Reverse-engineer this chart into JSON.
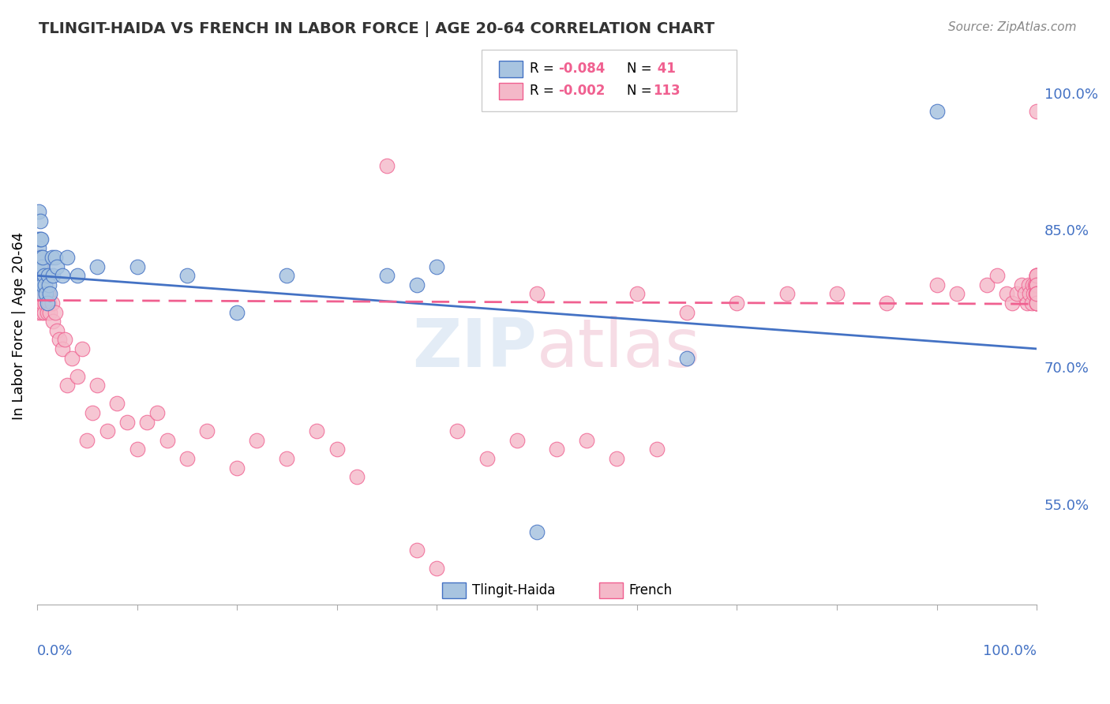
{
  "title": "TLINGIT-HAIDA VS FRENCH IN LABOR FORCE | AGE 20-64 CORRELATION CHART",
  "source": "Source: ZipAtlas.com",
  "ylabel": "In Labor Force | Age 20-64",
  "legend_r1": "R = -0.084",
  "legend_n1": "N =  41",
  "legend_r2": "R = -0.002",
  "legend_n2": "N = 113",
  "color_blue": "#a8c4e0",
  "color_pink": "#f4b8c8",
  "line_blue": "#4472c4",
  "line_pink": "#f06090",
  "blue_x": [
    0.001,
    0.001,
    0.002,
    0.002,
    0.002,
    0.003,
    0.003,
    0.003,
    0.003,
    0.004,
    0.004,
    0.004,
    0.005,
    0.005,
    0.006,
    0.006,
    0.007,
    0.008,
    0.009,
    0.01,
    0.011,
    0.012,
    0.013,
    0.015,
    0.016,
    0.018,
    0.02,
    0.025,
    0.03,
    0.04,
    0.06,
    0.1,
    0.15,
    0.2,
    0.25,
    0.35,
    0.38,
    0.4,
    0.5,
    0.65,
    0.9
  ],
  "blue_y": [
    0.82,
    0.84,
    0.8,
    0.83,
    0.87,
    0.79,
    0.81,
    0.84,
    0.86,
    0.79,
    0.82,
    0.84,
    0.78,
    0.81,
    0.79,
    0.82,
    0.8,
    0.79,
    0.78,
    0.77,
    0.8,
    0.79,
    0.78,
    0.82,
    0.8,
    0.82,
    0.81,
    0.8,
    0.82,
    0.8,
    0.81,
    0.81,
    0.8,
    0.76,
    0.8,
    0.8,
    0.79,
    0.81,
    0.52,
    0.71,
    0.98
  ],
  "pink_x": [
    0.001,
    0.001,
    0.001,
    0.002,
    0.002,
    0.002,
    0.002,
    0.003,
    0.003,
    0.003,
    0.003,
    0.004,
    0.004,
    0.004,
    0.005,
    0.005,
    0.005,
    0.006,
    0.006,
    0.007,
    0.007,
    0.008,
    0.008,
    0.009,
    0.01,
    0.011,
    0.012,
    0.013,
    0.015,
    0.016,
    0.018,
    0.02,
    0.022,
    0.025,
    0.028,
    0.03,
    0.035,
    0.04,
    0.045,
    0.05,
    0.055,
    0.06,
    0.07,
    0.08,
    0.09,
    0.1,
    0.11,
    0.12,
    0.13,
    0.15,
    0.17,
    0.2,
    0.22,
    0.25,
    0.28,
    0.3,
    0.32,
    0.35,
    0.38,
    0.4,
    0.42,
    0.45,
    0.48,
    0.5,
    0.52,
    0.55,
    0.58,
    0.6,
    0.62,
    0.65,
    0.7,
    0.75,
    0.8,
    0.85,
    0.9,
    0.92,
    0.95,
    0.96,
    0.97,
    0.975,
    0.98,
    0.985,
    0.988,
    0.99,
    0.992,
    0.993,
    0.995,
    0.996,
    0.997,
    0.998,
    0.999,
    1.0,
    1.0,
    1.0,
    1.0,
    1.0,
    1.0,
    1.0,
    1.0,
    1.0,
    1.0,
    1.0,
    1.0,
    1.0,
    1.0,
    1.0,
    1.0,
    1.0,
    1.0,
    1.0,
    1.0,
    1.0,
    1.0,
    1.0
  ],
  "pink_y": [
    0.78,
    0.8,
    0.82,
    0.76,
    0.79,
    0.8,
    0.82,
    0.77,
    0.79,
    0.8,
    0.82,
    0.78,
    0.8,
    0.81,
    0.76,
    0.79,
    0.8,
    0.77,
    0.79,
    0.76,
    0.79,
    0.77,
    0.79,
    0.78,
    0.76,
    0.78,
    0.77,
    0.76,
    0.77,
    0.75,
    0.76,
    0.74,
    0.73,
    0.72,
    0.73,
    0.68,
    0.71,
    0.69,
    0.72,
    0.62,
    0.65,
    0.68,
    0.63,
    0.66,
    0.64,
    0.61,
    0.64,
    0.65,
    0.62,
    0.6,
    0.63,
    0.59,
    0.62,
    0.6,
    0.63,
    0.61,
    0.58,
    0.92,
    0.5,
    0.48,
    0.63,
    0.6,
    0.62,
    0.78,
    0.61,
    0.62,
    0.6,
    0.78,
    0.61,
    0.76,
    0.77,
    0.78,
    0.78,
    0.77,
    0.79,
    0.78,
    0.79,
    0.8,
    0.78,
    0.77,
    0.78,
    0.79,
    0.78,
    0.77,
    0.79,
    0.78,
    0.77,
    0.79,
    0.78,
    0.79,
    0.78,
    0.77,
    0.78,
    0.79,
    0.8,
    0.78,
    0.79,
    0.8,
    0.78,
    0.77,
    0.78,
    0.79,
    0.8,
    0.79,
    0.78,
    0.77,
    0.78,
    0.79,
    0.8,
    0.79,
    0.78,
    0.77,
    0.98,
    0.78
  ],
  "slope_blue": -0.08,
  "intercept_blue": 0.8,
  "slope_pink": -0.004,
  "intercept_pink": 0.773
}
